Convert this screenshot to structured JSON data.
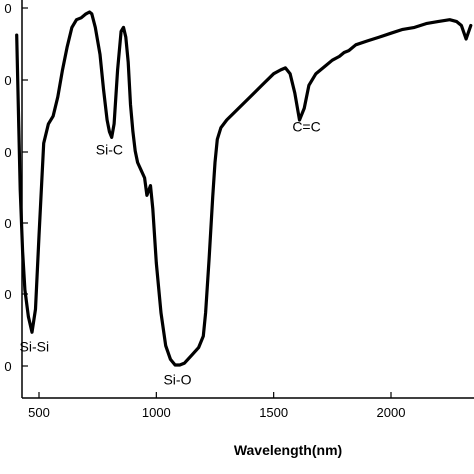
{
  "chart_data": {
    "type": "line",
    "title": "",
    "xlabel": "Wavelength(nm)",
    "ylabel": "",
    "xlim": [
      400,
      2350
    ],
    "ylim": [
      0,
      10
    ],
    "x_ticks": [
      {
        "value": 500,
        "label": "500"
      },
      {
        "value": 1000,
        "label": "1000"
      },
      {
        "value": 1500,
        "label": "1500"
      },
      {
        "value": 2000,
        "label": "2000"
      }
    ],
    "y_ticks": [
      {
        "value": 9.9,
        "label": "0"
      },
      {
        "value": 8.3,
        "label": "0"
      },
      {
        "value": 6.6,
        "label": "0"
      },
      {
        "value": 5.0,
        "label": "0"
      },
      {
        "value": 3.3,
        "label": "0"
      },
      {
        "value": 1.7,
        "label": "0"
      }
    ],
    "grid": false,
    "series": [
      {
        "color": "#000000",
        "x": [
          405,
          420,
          430,
          440,
          455,
          470,
          485,
          500,
          520,
          540,
          560,
          580,
          600,
          620,
          640,
          660,
          680,
          700,
          715,
          725,
          740,
          760,
          775,
          790,
          800,
          810,
          820,
          835,
          850,
          860,
          870,
          880,
          890,
          900,
          910,
          920,
          935,
          950,
          960,
          975,
          985,
          1000,
          1020,
          1040,
          1060,
          1080,
          1100,
          1120,
          1150,
          1180,
          1200,
          1210,
          1225,
          1240,
          1250,
          1260,
          1275,
          1300,
          1350,
          1400,
          1450,
          1500,
          1530,
          1550,
          1570,
          1590,
          1610,
          1630,
          1650,
          1680,
          1720,
          1750,
          1780,
          1800,
          1820,
          1850,
          1900,
          1950,
          2000,
          2050,
          2100,
          2150,
          2200,
          2250,
          2280,
          2300,
          2320,
          2340
        ],
        "y": [
          9.4,
          5.4,
          3.8,
          2.8,
          2.1,
          1.7,
          2.3,
          4.2,
          6.6,
          7.1,
          7.3,
          7.8,
          8.5,
          9.1,
          9.6,
          9.8,
          9.85,
          9.95,
          10.0,
          9.95,
          9.6,
          8.9,
          8.0,
          7.2,
          6.9,
          6.75,
          7.1,
          8.5,
          9.5,
          9.6,
          9.35,
          8.7,
          7.6,
          6.9,
          6.4,
          6.1,
          5.9,
          5.7,
          5.25,
          5.5,
          4.9,
          3.5,
          2.2,
          1.35,
          1.0,
          0.85,
          0.85,
          0.9,
          1.1,
          1.3,
          1.6,
          2.2,
          3.6,
          5.2,
          6.1,
          6.7,
          7.0,
          7.2,
          7.5,
          7.8,
          8.1,
          8.4,
          8.5,
          8.55,
          8.4,
          7.9,
          7.2,
          7.5,
          8.1,
          8.4,
          8.6,
          8.75,
          8.85,
          8.95,
          9.0,
          9.15,
          9.25,
          9.35,
          9.45,
          9.55,
          9.6,
          9.7,
          9.75,
          9.8,
          9.75,
          9.65,
          9.3,
          9.65
        ]
      }
    ],
    "annotations": [
      {
        "text": "Si-Si",
        "x": 480,
        "y": 1.2
      },
      {
        "text": "Si-C",
        "x": 800,
        "y": 6.3
      },
      {
        "text": "Si-O",
        "x": 1090,
        "y": 0.35
      },
      {
        "text": "C=C",
        "x": 1640,
        "y": 6.9
      }
    ]
  }
}
